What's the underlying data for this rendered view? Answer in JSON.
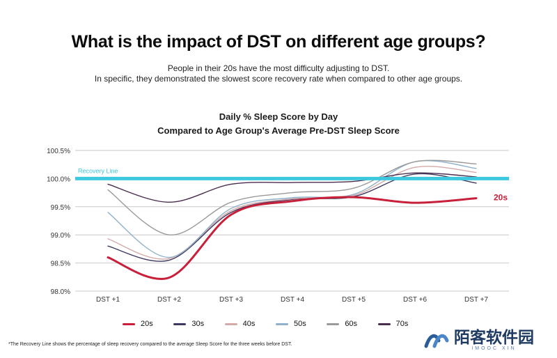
{
  "header": {
    "title": "What is the impact of DST on different age groups?",
    "subtitle_line1": "People in their 20s have the most difficulty adjusting to DST.",
    "subtitle_line2": "In specific, they demonstrated the slowest score recovery rate when compared to other age groups."
  },
  "footnote": "*The Recovery Line shows the percentage of sleep recovery compared to the average Sleep Score for the three weeks before DST.",
  "watermark": {
    "text": "陌客软件园",
    "sub": "IMOOC XIN"
  },
  "chart_data": {
    "type": "line",
    "title_line1": "Daily % Sleep Score by Day",
    "title_line2": "Compared to Age Group's Average Pre-DST Sleep Score",
    "categories": [
      "DST +1",
      "DST +2",
      "DST +3",
      "DST +4",
      "DST +5",
      "DST +6",
      "DST +7"
    ],
    "yticks": [
      "100.5%",
      "100.0%",
      "99.5%",
      "99.0%",
      "98.5%",
      "98.0%"
    ],
    "ylim": [
      98.0,
      100.5
    ],
    "grid": true,
    "legend_position": "bottom",
    "recovery_line": {
      "label": "Recovery Line",
      "value": 100.0,
      "color": "#3cc9df"
    },
    "highlight_label": "20s",
    "series": [
      {
        "name": "20s",
        "color": "#c8203a",
        "width": 3,
        "values": [
          98.6,
          98.24,
          99.36,
          99.6,
          99.67,
          99.57,
          99.65
        ]
      },
      {
        "name": "30s",
        "color": "#3e3860",
        "width": 1.4,
        "values": [
          98.8,
          98.55,
          99.4,
          99.63,
          99.68,
          100.08,
          99.92
        ]
      },
      {
        "name": "40s",
        "color": "#d4aaa8",
        "width": 1.4,
        "values": [
          98.93,
          98.58,
          99.43,
          99.64,
          99.7,
          100.2,
          100.11
        ]
      },
      {
        "name": "50s",
        "color": "#8fb1c9",
        "width": 1.4,
        "values": [
          99.4,
          98.6,
          99.47,
          99.66,
          99.72,
          100.3,
          100.18
        ]
      },
      {
        "name": "60s",
        "color": "#9a9a9a",
        "width": 1.4,
        "values": [
          99.8,
          99.0,
          99.58,
          99.75,
          99.83,
          100.3,
          100.26
        ]
      },
      {
        "name": "70s",
        "color": "#4a2c4e",
        "width": 1.4,
        "values": [
          99.9,
          99.58,
          99.9,
          99.93,
          99.95,
          100.1,
          100.03
        ]
      }
    ]
  }
}
